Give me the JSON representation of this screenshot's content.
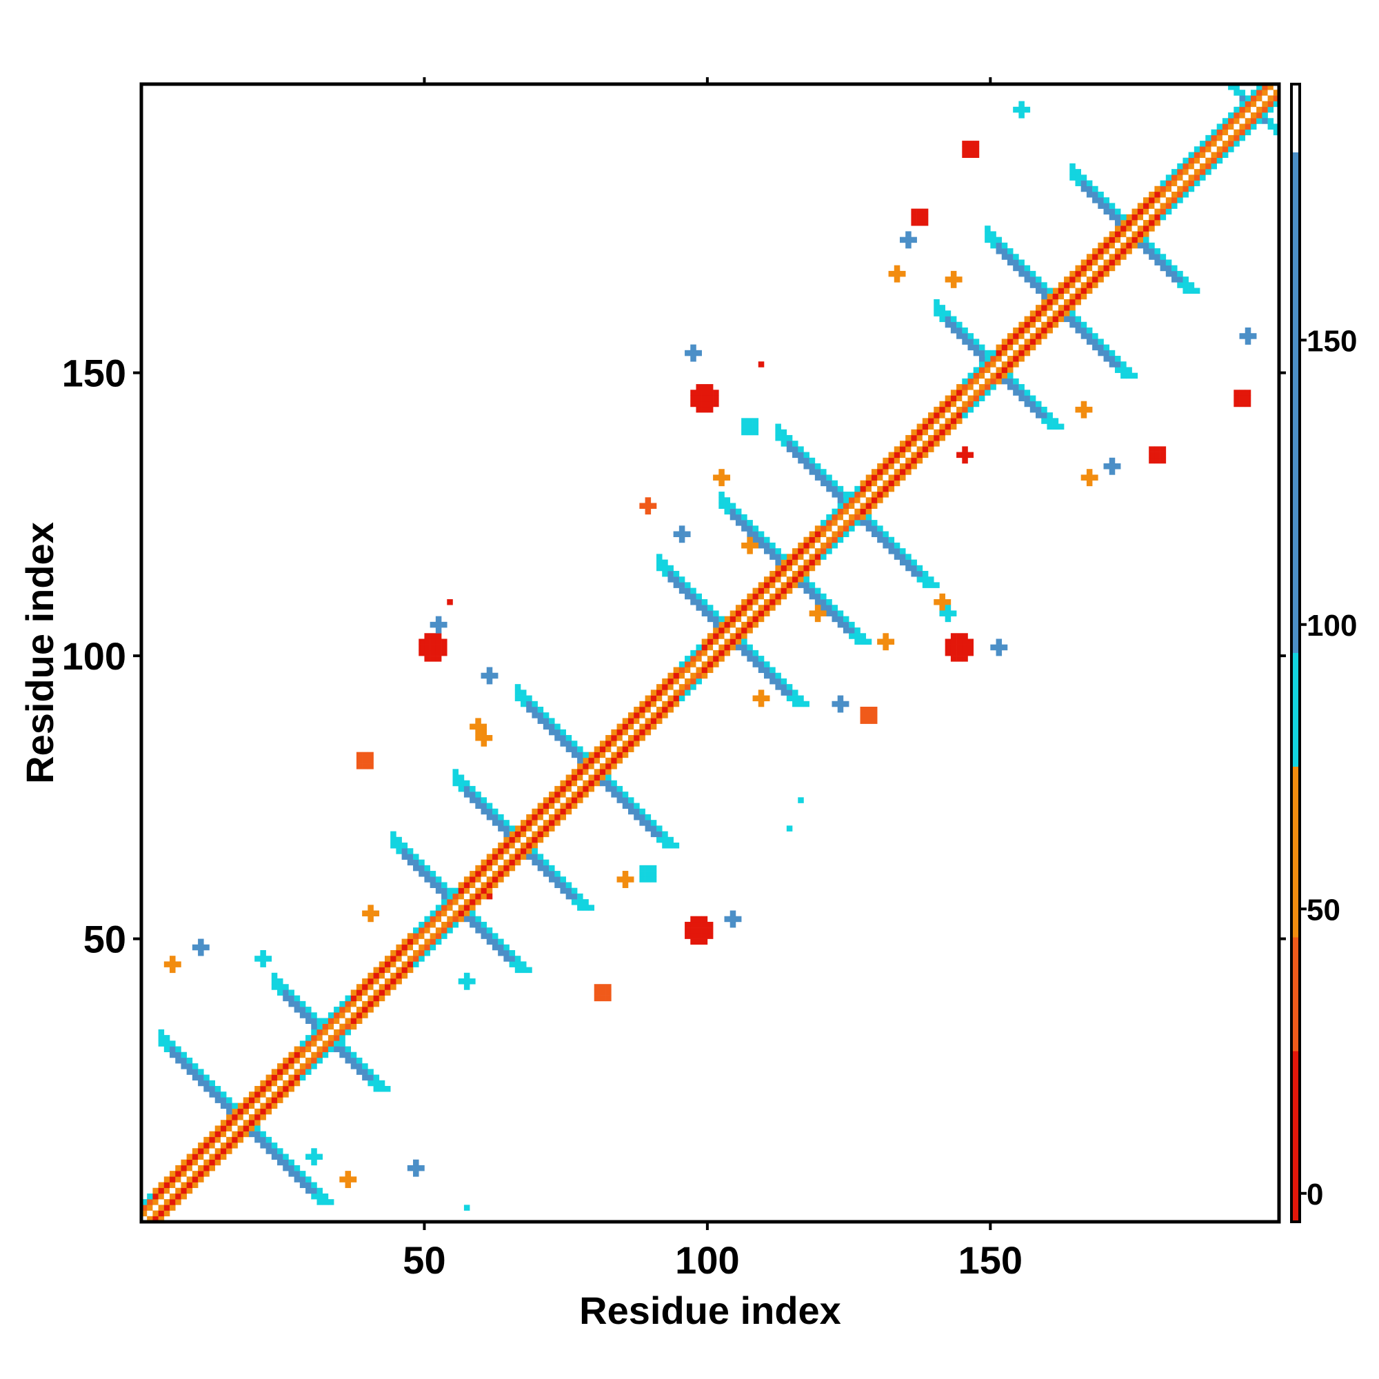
{
  "chart_data": {
    "type": "heatmap",
    "title": "",
    "xlabel": "Residue index",
    "ylabel": "Residue index",
    "xlim": [
      0,
      201
    ],
    "ylim": [
      0,
      201
    ],
    "xticks": [
      50,
      100,
      150
    ],
    "yticks": [
      50,
      100,
      150
    ],
    "colorbar": {
      "ticks": [
        0,
        50,
        100,
        150
      ],
      "range": [
        -5,
        195
      ],
      "bands": [
        {
          "from": -5,
          "to": 25,
          "color": "#e3170a"
        },
        {
          "from": 25,
          "to": 45,
          "color": "#f05a1a"
        },
        {
          "from": 45,
          "to": 75,
          "color": "#f28c0f"
        },
        {
          "from": 75,
          "to": 95,
          "color": "#13d4e0"
        },
        {
          "from": 95,
          "to": 183,
          "color": "#4b8fc7"
        },
        {
          "from": 183,
          "to": 195,
          "color": "#ffffff"
        }
      ]
    },
    "colors": {
      "near": "#e3170a",
      "near_mid": "#f05a1a",
      "mid": "#f28c0f",
      "far_mid": "#13d4e0",
      "far": "#4b8fc7"
    },
    "diagonal_band": {
      "offsets": [
        -3,
        -2,
        -1,
        1,
        2,
        3
      ],
      "start": 1,
      "end": 201
    },
    "helix_diagonal": [
      [
        3,
        28
      ],
      [
        38,
        48
      ],
      [
        57,
        95
      ],
      [
        100,
        120
      ],
      [
        128,
        145
      ],
      [
        152,
        180
      ]
    ],
    "strand_pairs": [
      {
        "center": 18,
        "half_length": 14,
        "width": 2
      },
      {
        "center": 33,
        "half_length": 9,
        "width": 2
      },
      {
        "center": 56,
        "half_length": 11,
        "width": 2
      },
      {
        "center": 67,
        "half_length": 11,
        "width": 2
      },
      {
        "center": 80,
        "half_length": 13,
        "width": 2
      },
      {
        "center": 104,
        "half_length": 12,
        "width": 2
      },
      {
        "center": 115,
        "half_length": 12,
        "width": 2
      },
      {
        "center": 126,
        "half_length": 13,
        "width": 2
      },
      {
        "center": 151,
        "half_length": 10,
        "width": 2
      },
      {
        "center": 162,
        "half_length": 12,
        "width": 2
      },
      {
        "center": 175,
        "half_length": 10,
        "width": 2
      },
      {
        "center": 197,
        "half_length": 4,
        "width": 1
      }
    ],
    "blobs": [
      {
        "x": 52,
        "y": 102,
        "r": 2.2,
        "c": "near"
      },
      {
        "x": 82,
        "y": 41,
        "r": 1.5,
        "c": "near_mid"
      },
      {
        "x": 99,
        "y": 52,
        "r": 2.2,
        "c": "near"
      },
      {
        "x": 145,
        "y": 102,
        "r": 2.2,
        "c": "near"
      },
      {
        "x": 100,
        "y": 146,
        "r": 2.2,
        "c": "near"
      },
      {
        "x": 180,
        "y": 136,
        "r": 1.7,
        "c": "near"
      },
      {
        "x": 195,
        "y": 146,
        "r": 1.8,
        "c": "near"
      },
      {
        "x": 147,
        "y": 190,
        "r": 1.7,
        "c": "near"
      },
      {
        "x": 138,
        "y": 178,
        "r": 1.6,
        "c": "near"
      },
      {
        "x": 129,
        "y": 90,
        "r": 1.5,
        "c": "near_mid"
      },
      {
        "x": 90,
        "y": 127,
        "r": 1.3,
        "c": "near_mid"
      },
      {
        "x": 40,
        "y": 82,
        "r": 1.4,
        "c": "near_mid"
      },
      {
        "x": 6,
        "y": 46,
        "r": 1.0,
        "c": "mid"
      },
      {
        "x": 37,
        "y": 8,
        "r": 1.0,
        "c": "mid"
      },
      {
        "x": 58,
        "y": 43,
        "r": 1.0,
        "c": "far_mid"
      },
      {
        "x": 31,
        "y": 12,
        "r": 1.0,
        "c": "far_mid"
      },
      {
        "x": 58,
        "y": 3,
        "r": 0.7,
        "c": "far_mid"
      },
      {
        "x": 49,
        "y": 10,
        "r": 1.2,
        "c": "far"
      },
      {
        "x": 11,
        "y": 49,
        "r": 1.3,
        "c": "far"
      },
      {
        "x": 22,
        "y": 47,
        "r": 1.3,
        "c": "far_mid"
      },
      {
        "x": 53,
        "y": 106,
        "r": 1.2,
        "c": "far"
      },
      {
        "x": 62,
        "y": 97,
        "r": 1.3,
        "c": "far"
      },
      {
        "x": 60,
        "y": 88,
        "r": 1.2,
        "c": "mid"
      },
      {
        "x": 90,
        "y": 62,
        "r": 1.5,
        "c": "far_mid"
      },
      {
        "x": 105,
        "y": 54,
        "r": 1.3,
        "c": "far"
      },
      {
        "x": 108,
        "y": 141,
        "r": 1.4,
        "c": "far_mid"
      },
      {
        "x": 115,
        "y": 70,
        "r": 0.8,
        "c": "far_mid"
      },
      {
        "x": 142,
        "y": 110,
        "r": 1.3,
        "c": "mid"
      },
      {
        "x": 143,
        "y": 108,
        "r": 1.0,
        "c": "far_mid"
      },
      {
        "x": 152,
        "y": 102,
        "r": 1.2,
        "c": "far"
      },
      {
        "x": 124,
        "y": 92,
        "r": 1.2,
        "c": "far"
      },
      {
        "x": 96,
        "y": 122,
        "r": 1.2,
        "c": "far"
      },
      {
        "x": 117,
        "y": 75,
        "r": 0.8,
        "c": "far_mid"
      },
      {
        "x": 98,
        "y": 154,
        "r": 1.2,
        "c": "far"
      },
      {
        "x": 156,
        "y": 197,
        "r": 1.1,
        "c": "far_mid"
      },
      {
        "x": 196,
        "y": 157,
        "r": 1.1,
        "c": "far"
      },
      {
        "x": 172,
        "y": 134,
        "r": 1.2,
        "c": "far"
      },
      {
        "x": 136,
        "y": 174,
        "r": 1.2,
        "c": "far"
      },
      {
        "x": 168,
        "y": 132,
        "r": 1.1,
        "c": "mid"
      },
      {
        "x": 134,
        "y": 168,
        "r": 1.2,
        "c": "mid"
      },
      {
        "x": 86,
        "y": 61,
        "r": 1.1,
        "c": "mid"
      },
      {
        "x": 61,
        "y": 86,
        "r": 1.1,
        "c": "mid"
      },
      {
        "x": 103,
        "y": 132,
        "r": 1.1,
        "c": "mid"
      },
      {
        "x": 132,
        "y": 103,
        "r": 1.1,
        "c": "mid"
      },
      {
        "x": 108,
        "y": 120,
        "r": 1.1,
        "c": "mid"
      },
      {
        "x": 120,
        "y": 108,
        "r": 1.1,
        "c": "mid"
      },
      {
        "x": 167,
        "y": 144,
        "r": 1.1,
        "c": "mid"
      },
      {
        "x": 144,
        "y": 167,
        "r": 1.1,
        "c": "mid"
      },
      {
        "x": 135,
        "y": 135,
        "r": 0.0,
        "c": "mid"
      },
      {
        "x": 146,
        "y": 136,
        "r": 0.9,
        "c": "near"
      },
      {
        "x": 110,
        "y": 93,
        "r": 0.9,
        "c": "mid"
      },
      {
        "x": 41,
        "y": 55,
        "r": 1.0,
        "c": "mid"
      },
      {
        "x": 62,
        "y": 58,
        "r": 0.7,
        "c": "near"
      },
      {
        "x": 55,
        "y": 110,
        "r": 0.7,
        "c": "near"
      },
      {
        "x": 110,
        "y": 152,
        "r": 0.7,
        "c": "near"
      }
    ]
  }
}
